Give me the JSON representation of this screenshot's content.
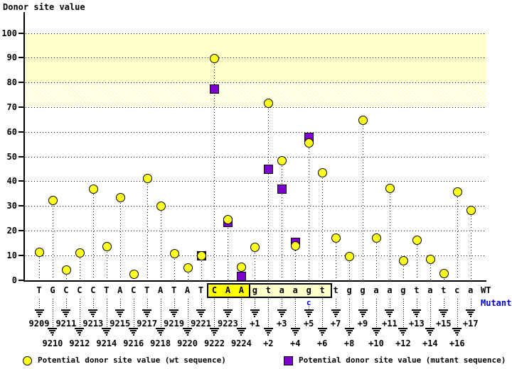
{
  "title": "Donor site value",
  "colors": {
    "wt_point": "#ffff22",
    "mutant_point": "#7d00cc",
    "band_solid": "#ffffcc",
    "highlight_exon": "#ffff00",
    "highlight_intron": "#ffffcc",
    "mutant_blue": "#0000cc",
    "axis": "#000000"
  },
  "chart_data": {
    "type": "scatter",
    "title": "Donor site value",
    "ylabel": "Donor site value",
    "ylim": [
      0,
      105
    ],
    "yticks": [
      0,
      10,
      20,
      30,
      40,
      50,
      60,
      70,
      80,
      90,
      100
    ],
    "grid": "horizontal dotted lines every 10",
    "legend_position": "bottom",
    "bands": [
      {
        "from": 80,
        "to": 100,
        "style": "solid"
      },
      {
        "from": 70,
        "to": 80,
        "style": "hatched"
      }
    ],
    "series": [
      {
        "name": "Potential donor site value (wt sequence)",
        "marker": "circle",
        "color": "#ffff22"
      },
      {
        "name": "Potential donor site value (mutant sequence)",
        "marker": "square",
        "color": "#7d00cc"
      }
    ],
    "positions": [
      {
        "pos": "9209",
        "base": "T",
        "wt": 11.3,
        "mut": null
      },
      {
        "pos": "9210",
        "base": "G",
        "wt": 32.4,
        "mut": null
      },
      {
        "pos": "9211",
        "base": "C",
        "wt": 4.3,
        "mut": null
      },
      {
        "pos": "9212",
        "base": "C",
        "wt": 11.0,
        "mut": null
      },
      {
        "pos": "9213",
        "base": "C",
        "wt": 36.8,
        "mut": null
      },
      {
        "pos": "9214",
        "base": "T",
        "wt": 13.7,
        "mut": null
      },
      {
        "pos": "9215",
        "base": "A",
        "wt": 33.4,
        "mut": null
      },
      {
        "pos": "9216",
        "base": "C",
        "wt": 2.5,
        "mut": null
      },
      {
        "pos": "9217",
        "base": "T",
        "wt": 41.3,
        "mut": null
      },
      {
        "pos": "9218",
        "base": "A",
        "wt": 30.0,
        "mut": null
      },
      {
        "pos": "9219",
        "base": "T",
        "wt": 10.7,
        "mut": null
      },
      {
        "pos": "9220",
        "base": "A",
        "wt": 5.0,
        "mut": null
      },
      {
        "pos": "9221",
        "base": "T",
        "wt": 9.8,
        "mut": 9.8
      },
      {
        "pos": "9222",
        "base": "C",
        "wt": 89.7,
        "mut": 77.5
      },
      {
        "pos": "9223",
        "base": "A",
        "wt": 24.7,
        "mut": 23.4
      },
      {
        "pos": "9224",
        "base": "A",
        "wt": 5.2,
        "mut": 1.7
      },
      {
        "pos": "+1",
        "base": "g",
        "wt": 13.5,
        "mut": null
      },
      {
        "pos": "+2",
        "base": "t",
        "wt": 71.8,
        "mut": 45.0
      },
      {
        "pos": "+3",
        "base": "a",
        "wt": 48.3,
        "mut": 37.0
      },
      {
        "pos": "+4",
        "base": "a",
        "wt": 14.0,
        "mut": 15.3
      },
      {
        "pos": "+5",
        "base": "g",
        "wt": 55.7,
        "mut": 57.8
      },
      {
        "pos": "+6",
        "base": "t",
        "wt": 43.4,
        "mut": null
      },
      {
        "pos": "+7",
        "base": "t",
        "wt": 17.2,
        "mut": null
      },
      {
        "pos": "+8",
        "base": "g",
        "wt": 9.5,
        "mut": null
      },
      {
        "pos": "+9",
        "base": "g",
        "wt": 64.7,
        "mut": null
      },
      {
        "pos": "+10",
        "base": "a",
        "wt": 17.0,
        "mut": null
      },
      {
        "pos": "+11",
        "base": "a",
        "wt": 37.3,
        "mut": null
      },
      {
        "pos": "+12",
        "base": "g",
        "wt": 8.0,
        "mut": null
      },
      {
        "pos": "+13",
        "base": "t",
        "wt": 16.1,
        "mut": null
      },
      {
        "pos": "+14",
        "base": "a",
        "wt": 8.6,
        "mut": null
      },
      {
        "pos": "+15",
        "base": "t",
        "wt": 2.6,
        "mut": null
      },
      {
        "pos": "+16",
        "base": "c",
        "wt": 35.9,
        "mut": null
      },
      {
        "pos": "+17",
        "base": "a",
        "wt": 28.2,
        "mut": null
      }
    ],
    "highlight_box": {
      "exon_from": "9222",
      "exon_to": "9224",
      "intron_from": "+1",
      "intron_to": "+6",
      "boxed_sequence": "CAAgtaagt"
    },
    "mutation": {
      "pos": "+5",
      "wt_base": "g",
      "mut_base": "c"
    }
  },
  "right_labels": {
    "wt": "WT",
    "mutant": "Mutant"
  },
  "legend": {
    "wt": "Potential donor site value (wt sequence)",
    "mutant": "Potential donor site value (mutant sequence)"
  }
}
